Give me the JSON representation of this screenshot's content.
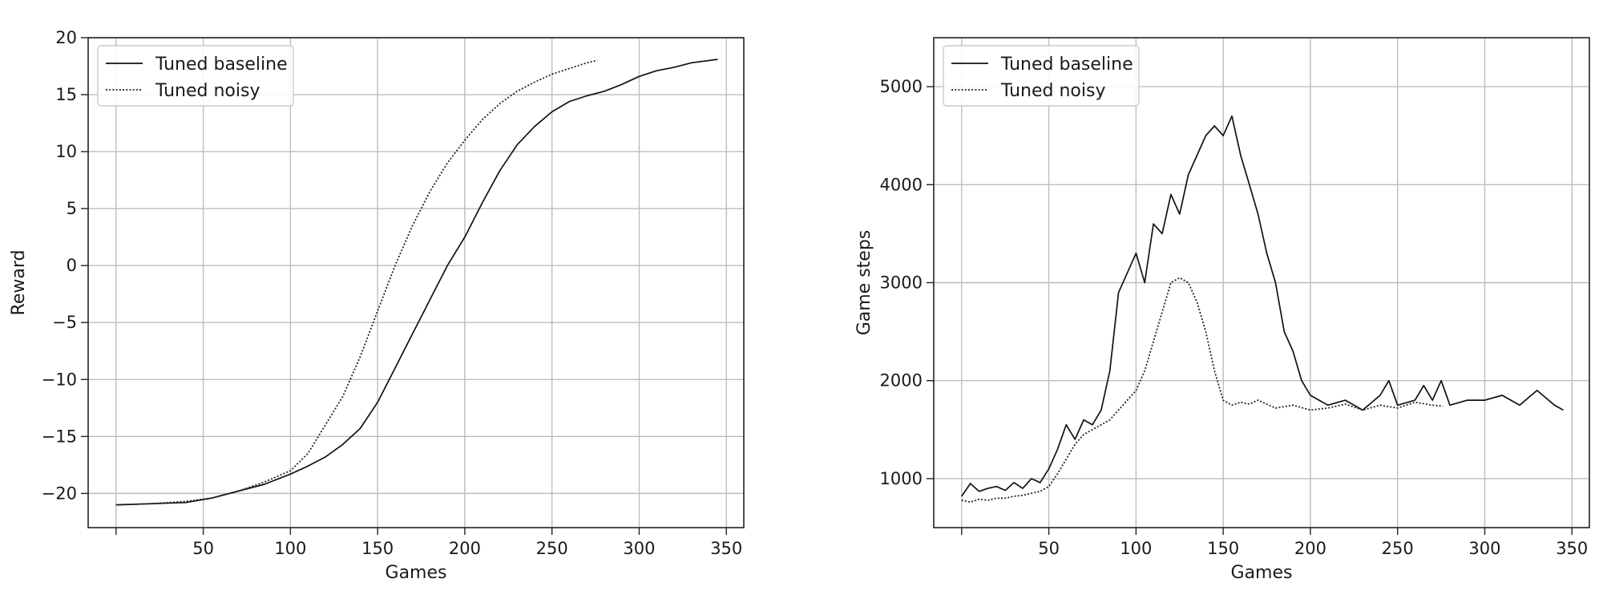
{
  "chart_data": [
    {
      "type": "line",
      "title": "",
      "xlabel": "Games",
      "ylabel": "Reward",
      "xlim": [
        -16,
        360
      ],
      "ylim": [
        -23,
        20
      ],
      "xticks": [
        50,
        100,
        150,
        200,
        250,
        300,
        350
      ],
      "yticks": [
        -20,
        -15,
        -10,
        -5,
        0,
        5,
        10,
        15,
        20
      ],
      "grid": true,
      "legend": "top-left",
      "series": [
        {
          "name": "Tuned baseline",
          "style": "solid",
          "color": "#111111",
          "points": [
            [
              0,
              -21.0
            ],
            [
              20,
              -20.9
            ],
            [
              40,
              -20.8
            ],
            [
              55,
              -20.4
            ],
            [
              70,
              -19.8
            ],
            [
              85,
              -19.2
            ],
            [
              100,
              -18.3
            ],
            [
              110,
              -17.6
            ],
            [
              120,
              -16.8
            ],
            [
              130,
              -15.7
            ],
            [
              140,
              -14.3
            ],
            [
              150,
              -12.0
            ],
            [
              160,
              -9.0
            ],
            [
              170,
              -6.0
            ],
            [
              180,
              -3.0
            ],
            [
              190,
              0.0
            ],
            [
              200,
              2.5
            ],
            [
              210,
              5.5
            ],
            [
              220,
              8.3
            ],
            [
              230,
              10.6
            ],
            [
              240,
              12.2
            ],
            [
              250,
              13.5
            ],
            [
              260,
              14.4
            ],
            [
              270,
              14.9
            ],
            [
              280,
              15.3
            ],
            [
              290,
              15.9
            ],
            [
              300,
              16.6
            ],
            [
              310,
              17.1
            ],
            [
              320,
              17.4
            ],
            [
              330,
              17.8
            ],
            [
              345,
              18.1
            ]
          ]
        },
        {
          "name": "Tuned noisy",
          "style": "dotted",
          "color": "#222222",
          "points": [
            [
              0,
              -21.0
            ],
            [
              20,
              -20.9
            ],
            [
              40,
              -20.7
            ],
            [
              55,
              -20.4
            ],
            [
              70,
              -19.8
            ],
            [
              85,
              -19.0
            ],
            [
              100,
              -18.0
            ],
            [
              110,
              -16.5
            ],
            [
              120,
              -14.0
            ],
            [
              130,
              -11.5
            ],
            [
              140,
              -8.0
            ],
            [
              150,
              -4.0
            ],
            [
              160,
              0.0
            ],
            [
              170,
              3.5
            ],
            [
              180,
              6.5
            ],
            [
              190,
              9.0
            ],
            [
              200,
              11.0
            ],
            [
              210,
              12.8
            ],
            [
              220,
              14.2
            ],
            [
              230,
              15.3
            ],
            [
              240,
              16.1
            ],
            [
              250,
              16.8
            ],
            [
              260,
              17.3
            ],
            [
              270,
              17.8
            ],
            [
              276,
              18.0
            ]
          ]
        }
      ]
    },
    {
      "type": "line",
      "title": "",
      "xlabel": "Games",
      "ylabel": "Game steps",
      "xlim": [
        -16,
        360
      ],
      "ylim": [
        500,
        5500
      ],
      "xticks": [
        50,
        100,
        150,
        200,
        250,
        300,
        350
      ],
      "yticks": [
        1000,
        2000,
        3000,
        4000,
        5000
      ],
      "grid": true,
      "legend": "top-left",
      "series": [
        {
          "name": "Tuned baseline",
          "style": "solid",
          "color": "#111111",
          "points": [
            [
              0,
              820
            ],
            [
              5,
              950
            ],
            [
              10,
              870
            ],
            [
              15,
              900
            ],
            [
              20,
              920
            ],
            [
              25,
              880
            ],
            [
              30,
              960
            ],
            [
              35,
              900
            ],
            [
              40,
              1000
            ],
            [
              45,
              960
            ],
            [
              50,
              1100
            ],
            [
              55,
              1300
            ],
            [
              60,
              1550
            ],
            [
              65,
              1400
            ],
            [
              70,
              1600
            ],
            [
              75,
              1550
            ],
            [
              80,
              1700
            ],
            [
              85,
              2100
            ],
            [
              90,
              2900
            ],
            [
              95,
              3100
            ],
            [
              100,
              3300
            ],
            [
              105,
              3000
            ],
            [
              110,
              3600
            ],
            [
              115,
              3500
            ],
            [
              120,
              3900
            ],
            [
              125,
              3700
            ],
            [
              130,
              4100
            ],
            [
              135,
              4300
            ],
            [
              140,
              4500
            ],
            [
              145,
              4600
            ],
            [
              150,
              4500
            ],
            [
              155,
              4700
            ],
            [
              160,
              4300
            ],
            [
              165,
              4000
            ],
            [
              170,
              3700
            ],
            [
              175,
              3300
            ],
            [
              180,
              3000
            ],
            [
              185,
              2500
            ],
            [
              190,
              2300
            ],
            [
              195,
              2000
            ],
            [
              200,
              1850
            ],
            [
              210,
              1750
            ],
            [
              220,
              1800
            ],
            [
              230,
              1700
            ],
            [
              240,
              1850
            ],
            [
              245,
              2000
            ],
            [
              250,
              1750
            ],
            [
              260,
              1800
            ],
            [
              265,
              1950
            ],
            [
              270,
              1800
            ],
            [
              275,
              2000
            ],
            [
              280,
              1750
            ],
            [
              290,
              1800
            ],
            [
              300,
              1800
            ],
            [
              310,
              1850
            ],
            [
              320,
              1750
            ],
            [
              330,
              1900
            ],
            [
              340,
              1750
            ],
            [
              345,
              1700
            ]
          ]
        },
        {
          "name": "Tuned noisy",
          "style": "dotted",
          "color": "#222222",
          "points": [
            [
              0,
              780
            ],
            [
              5,
              760
            ],
            [
              10,
              790
            ],
            [
              15,
              780
            ],
            [
              20,
              800
            ],
            [
              25,
              800
            ],
            [
              30,
              820
            ],
            [
              35,
              830
            ],
            [
              40,
              850
            ],
            [
              45,
              870
            ],
            [
              50,
              920
            ],
            [
              55,
              1050
            ],
            [
              60,
              1200
            ],
            [
              65,
              1350
            ],
            [
              70,
              1450
            ],
            [
              75,
              1500
            ],
            [
              80,
              1550
            ],
            [
              85,
              1600
            ],
            [
              90,
              1700
            ],
            [
              95,
              1800
            ],
            [
              100,
              1900
            ],
            [
              105,
              2100
            ],
            [
              110,
              2400
            ],
            [
              115,
              2700
            ],
            [
              120,
              3000
            ],
            [
              125,
              3050
            ],
            [
              130,
              3000
            ],
            [
              135,
              2800
            ],
            [
              140,
              2500
            ],
            [
              145,
              2100
            ],
            [
              150,
              1800
            ],
            [
              155,
              1750
            ],
            [
              160,
              1780
            ],
            [
              165,
              1760
            ],
            [
              170,
              1800
            ],
            [
              180,
              1720
            ],
            [
              190,
              1750
            ],
            [
              200,
              1700
            ],
            [
              210,
              1720
            ],
            [
              220,
              1760
            ],
            [
              230,
              1700
            ],
            [
              240,
              1750
            ],
            [
              250,
              1720
            ],
            [
              260,
              1780
            ],
            [
              270,
              1750
            ],
            [
              276,
              1740
            ]
          ]
        }
      ]
    }
  ]
}
